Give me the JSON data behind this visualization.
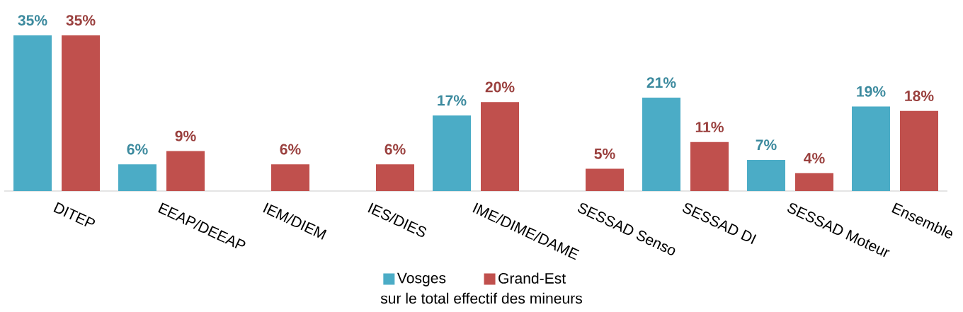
{
  "chart_data": {
    "type": "bar",
    "categories": [
      "DITEP",
      "EEAP/DEEAP",
      "IEM/DIEM",
      "IES/DIES",
      "IME/DIME/DAME",
      "SESSAD Senso",
      "SESSAD DI",
      "SESSAD Moteur",
      "Ensemble"
    ],
    "series": [
      {
        "name": "Vosges",
        "color": "#4bacc6",
        "values": [
          35,
          6,
          null,
          null,
          17,
          null,
          21,
          7,
          19
        ],
        "value_labels": [
          "35%",
          "6%",
          null,
          null,
          "17%",
          null,
          "21%",
          "7%",
          "19%"
        ]
      },
      {
        "name": "Grand-Est",
        "color": "#c0504d",
        "values": [
          35,
          9,
          6,
          6,
          20,
          5,
          11,
          4,
          18
        ],
        "value_labels": [
          "35%",
          "9%",
          "6%",
          "6%",
          "20%",
          "5%",
          "11%",
          "4%",
          "18%"
        ]
      }
    ],
    "legend": "bottom",
    "annotations": [
      "sur le total effectif des mineurs"
    ]
  }
}
